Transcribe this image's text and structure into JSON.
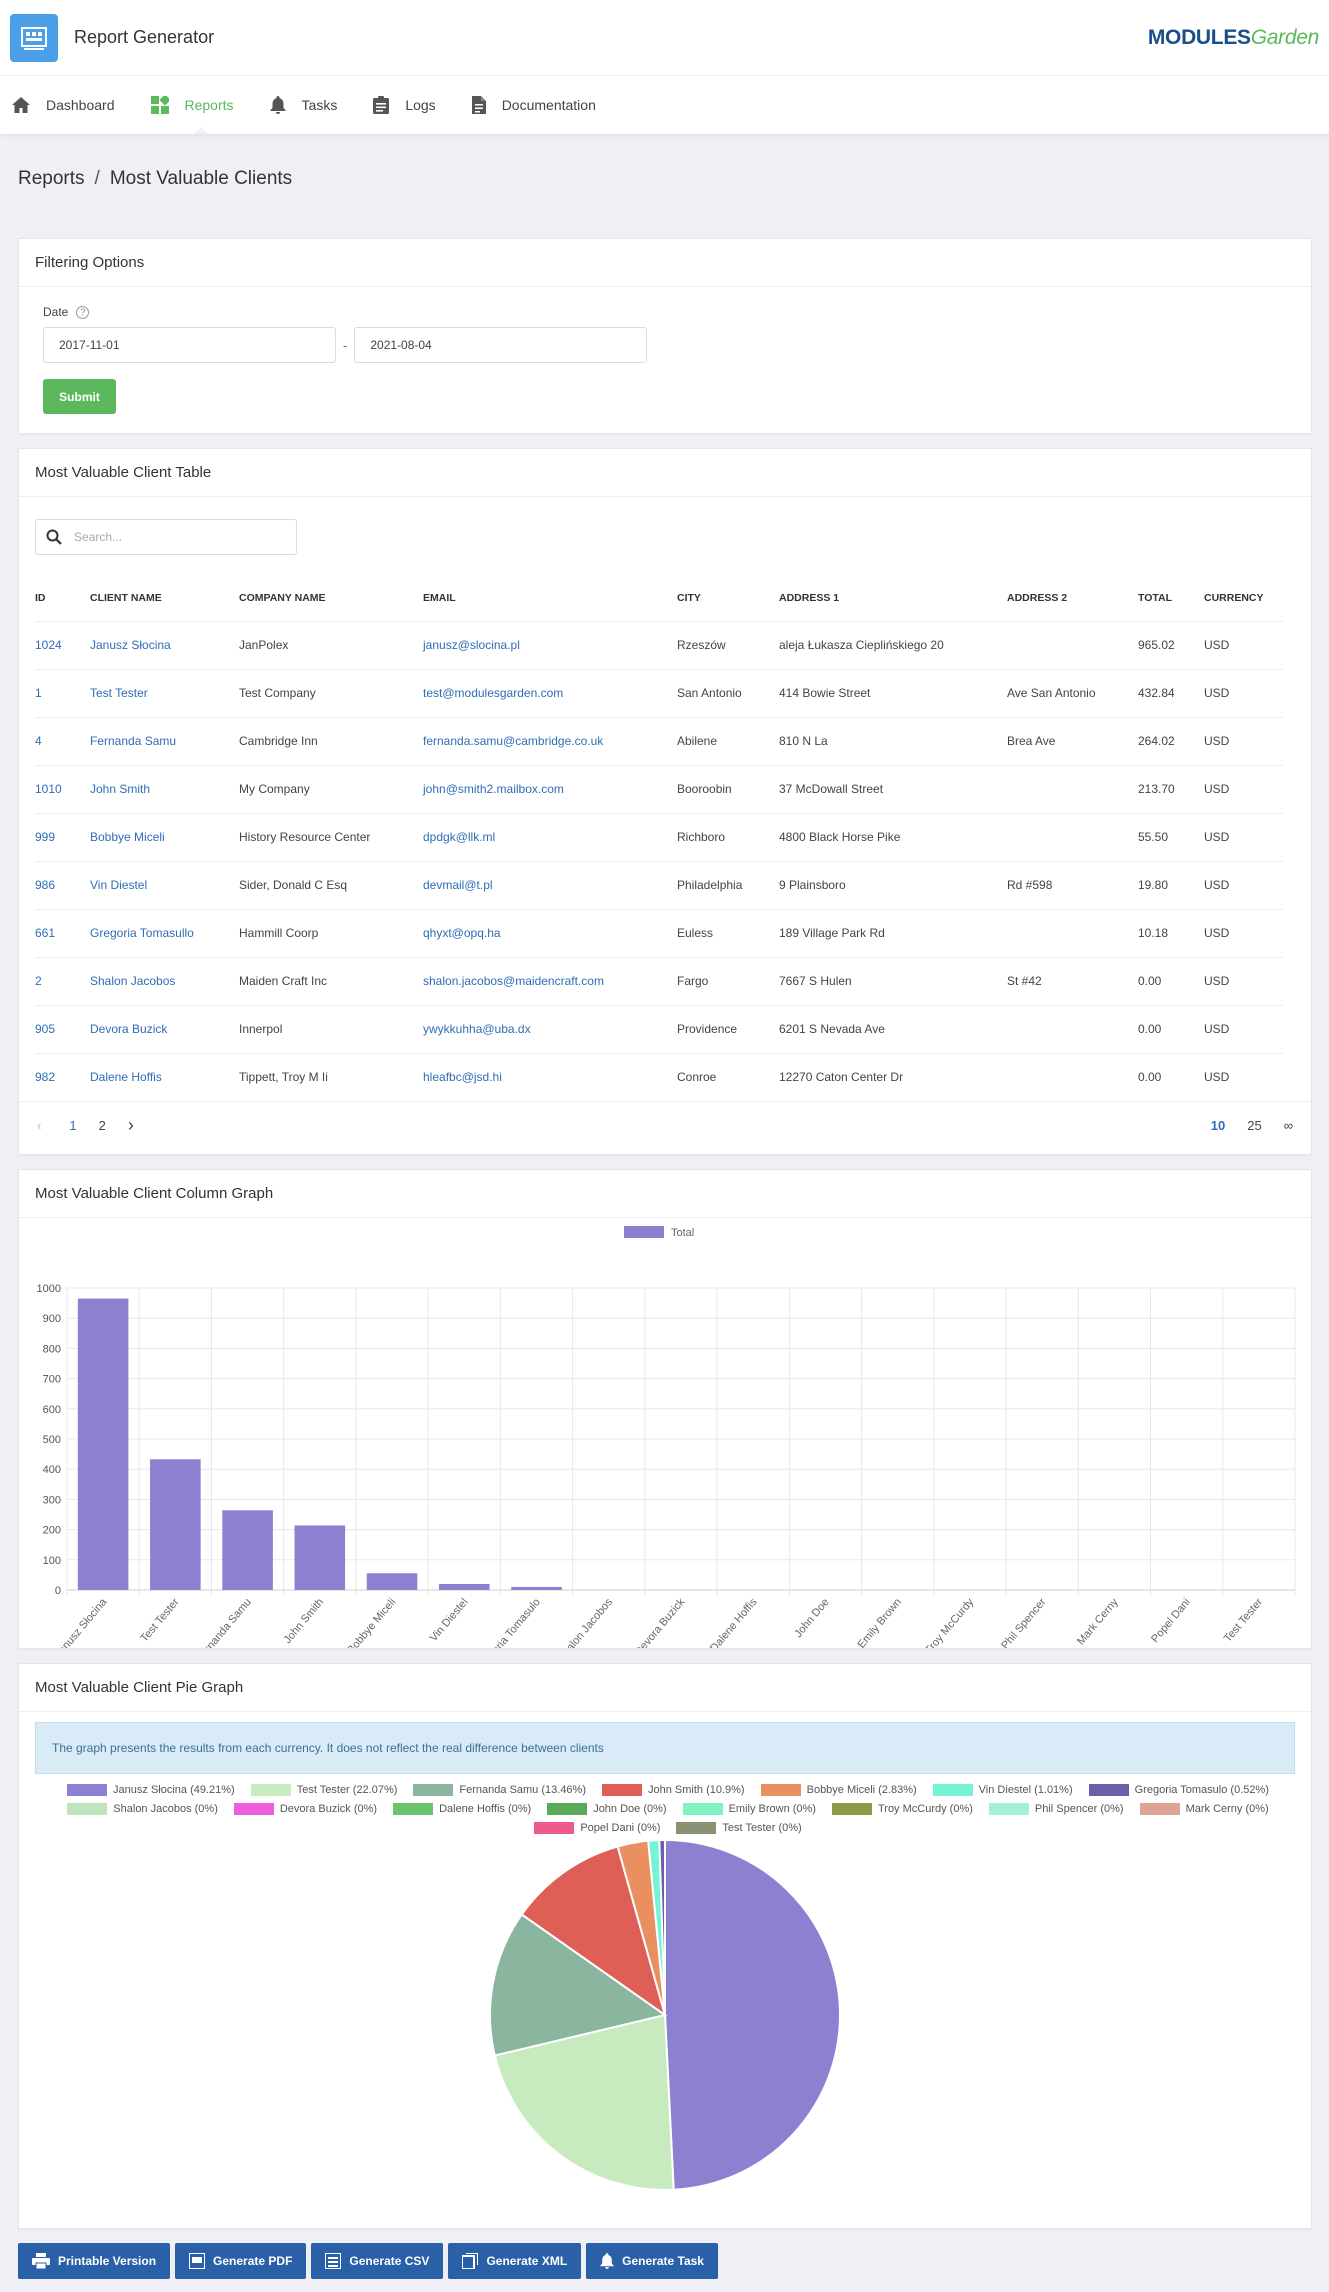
{
  "app": {
    "title": "Report Generator",
    "brand_main": "MODULES",
    "brand_accent": "Garden"
  },
  "nav": [
    {
      "label": "Dashboard",
      "icon": "home-icon"
    },
    {
      "label": "Reports",
      "icon": "reports-icon"
    },
    {
      "label": "Tasks",
      "icon": "bell-icon"
    },
    {
      "label": "Logs",
      "icon": "clipboard-icon"
    },
    {
      "label": "Documentation",
      "icon": "document-icon"
    }
  ],
  "breadcrumb": {
    "parent": "Reports",
    "sep": "/",
    "current": "Most Valuable Clients"
  },
  "filter": {
    "title": "Filtering Options",
    "date_label": "Date",
    "help": "?",
    "date_from": "2017-11-01",
    "dash": "-",
    "date_to": "2021-08-04",
    "submit": "Submit"
  },
  "table": {
    "title": "Most Valuable Client Table",
    "search_placeholder": "Search...",
    "columns": [
      "ID",
      "CLIENT NAME",
      "COMPANY NAME",
      "EMAIL",
      "CITY",
      "ADDRESS 1",
      "ADDRESS 2",
      "TOTAL",
      "CURRENCY"
    ],
    "rows": [
      [
        "1024",
        "Janusz Słocina",
        "JanPolex",
        "janusz@slocina.pl",
        "Rzeszów",
        "aleja Łukasza Cieplińskiego 20",
        "",
        "965.02",
        "USD"
      ],
      [
        "1",
        "Test Tester",
        "Test Company",
        "test@modulesgarden.com",
        "San Antonio",
        "414 Bowie Street",
        "Ave San Antonio",
        "432.84",
        "USD"
      ],
      [
        "4",
        "Fernanda Samu",
        "Cambridge Inn",
        "fernanda.samu@cambridge.co.uk",
        "Abilene",
        "810 N La",
        " Brea Ave",
        "264.02",
        "USD"
      ],
      [
        "1010",
        "John Smith",
        "My Company",
        "john@smith2.mailbox.com",
        "Booroobin",
        "37 McDowall Street",
        "",
        "213.70",
        "USD"
      ],
      [
        "999",
        "Bobbye Miceli",
        "History Resource Center",
        "dpdgk@llk.ml",
        "Richboro",
        "4800 Black Horse Pike",
        "",
        "55.50",
        "USD"
      ],
      [
        "986",
        "Vin Diestel",
        "Sider, Donald C Esq",
        "devmail@t.pl",
        "Philadelphia",
        "9 Plainsboro",
        "Rd #598",
        "19.80",
        "USD"
      ],
      [
        "661",
        "Gregoria Tomasullo",
        "Hammill Coorp",
        "qhyxt@opq.ha",
        "Euless",
        "189 Village Park Rd",
        "",
        "10.18",
        "USD"
      ],
      [
        "2",
        "Shalon Jacobos",
        "Maiden Craft Inc",
        "shalon.jacobos@maidencraft.com",
        "Fargo",
        "7667 S Hulen",
        "St #42",
        "0.00",
        "USD"
      ],
      [
        "905",
        "Devora Buzick",
        "Innerpol",
        "ywykkuhha@uba.dx",
        "Providence",
        "6201 S Nevada Ave",
        "",
        "0.00",
        "USD"
      ],
      [
        "982",
        "Dalene Hoffis",
        "Tippett, Troy M Ii",
        "hleafbc@jsd.hi",
        "Conroe",
        "12270 Caton Center Dr",
        "",
        "0.00",
        "USD"
      ]
    ],
    "pages": [
      "1",
      "2"
    ],
    "page_sizes": [
      "10",
      "25",
      "∞"
    ]
  },
  "column_graph": {
    "title": "Most Valuable Client Column Graph"
  },
  "pie_graph": {
    "title": "Most Valuable Client Pie Graph",
    "info": "The graph presents the results from each currency. It does not reflect the real difference between clients"
  },
  "chart_data": [
    {
      "type": "bar",
      "title": "",
      "legend": [
        "Total"
      ],
      "color": "#8c80d0",
      "ylim": [
        0,
        1000
      ],
      "yticks": [
        0,
        100,
        200,
        300,
        400,
        500,
        600,
        700,
        800,
        900,
        1000
      ],
      "categories": [
        "Janusz Słocina",
        "Test Tester",
        "Fernanda Samu",
        "John Smith",
        "Bobbye Miceli",
        "Vin Diestel",
        "Gregoria Tomasulo",
        "Shalon Jacobos",
        "Devora Buzick",
        "Dalene Hoffis",
        "John Doe",
        "Emily Brown",
        "Troy  McCurdy",
        "Phil Spencer",
        "Mark Cerny",
        "Popel Dani",
        "Test Tester"
      ],
      "values": [
        965.02,
        432.84,
        264.02,
        213.7,
        55.5,
        19.8,
        10.18,
        0,
        0,
        0,
        0,
        0,
        0,
        0,
        0,
        0,
        0
      ]
    },
    {
      "type": "pie",
      "labels": [
        "Janusz Słocina (49.21%)",
        "Test Tester (22.07%)",
        "Fernanda Samu (13.46%)",
        "John Smith (10.9%)",
        "Bobbye Miceli (2.83%)",
        "Vin Diestel (1.01%)",
        "Gregoria Tomasulo (0.52%)",
        "Shalon Jacobos (0%)",
        "Devora Buzick (0%)",
        "Dalene Hoffis (0%)",
        "John Doe (0%)",
        "Emily Brown (0%)",
        "Troy  McCurdy (0%)",
        "Phil Spencer (0%)",
        "Mark Cerny (0%)",
        "Popel Dani (0%)",
        "Test Tester (0%)"
      ],
      "values": [
        49.21,
        22.07,
        13.46,
        10.9,
        2.83,
        1.01,
        0.52,
        0,
        0,
        0,
        0,
        0,
        0,
        0,
        0,
        0,
        0
      ],
      "colors": [
        "#8c80d0",
        "#c8eabf",
        "#8ab59e",
        "#dd5f55",
        "#ea8f5f",
        "#74f4d4",
        "#6c5ea8",
        "#bfe3bd",
        "#ee5edc",
        "#6ac46c",
        "#5aaa5a",
        "#7ff3c2",
        "#8a9a48",
        "#a3efd9",
        "#dfa394",
        "#ee5a8e",
        "#8a9276"
      ]
    }
  ],
  "actions": [
    {
      "label": "Printable Version",
      "icon": "printer-icon"
    },
    {
      "label": "Generate PDF",
      "icon": "pdf-icon"
    },
    {
      "label": "Generate CSV",
      "icon": "csv-icon"
    },
    {
      "label": "Generate XML",
      "icon": "xml-icon"
    },
    {
      "label": "Generate Task",
      "icon": "bell-icon"
    }
  ]
}
